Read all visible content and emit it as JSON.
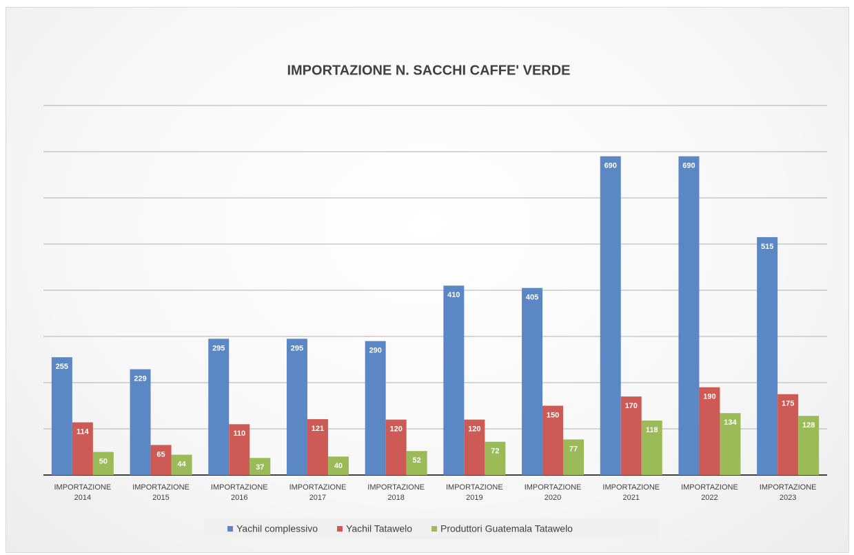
{
  "chart_data": {
    "type": "bar",
    "title": "IMPORTAZIONE N. SACCHI CAFFE' VERDE",
    "categories": [
      "IMPORTAZIONE 2014",
      "IMPORTAZIONE 2015",
      "IMPORTAZIONE 2016",
      "IMPORTAZIONE 2017",
      "IMPORTAZIONE 2018",
      "IMPORTAZIONE 2019",
      "IMPORTAZIONE 2020",
      "IMPORTAZIONE 2021",
      "IMPORTAZIONE 2022",
      "IMPORTAZIONE 2023"
    ],
    "series": [
      {
        "name": "Yachil complessivo",
        "color": "#5b87c5",
        "values": [
          255,
          229,
          295,
          295,
          290,
          410,
          405,
          690,
          690,
          515
        ]
      },
      {
        "name": "Yachil Tatawelo",
        "color": "#cd5a55",
        "values": [
          114,
          65,
          110,
          121,
          120,
          120,
          150,
          170,
          190,
          175
        ]
      },
      {
        "name": "Produttori Guatemala Tatawelo",
        "color": "#9bbb59",
        "values": [
          50,
          44,
          37,
          40,
          52,
          72,
          77,
          118,
          134,
          128
        ]
      }
    ],
    "ylim": [
      0,
      800
    ],
    "yticks": [
      0,
      100,
      200,
      300,
      400,
      500,
      600,
      700,
      800
    ],
    "grid": true,
    "legend": "bottom"
  }
}
